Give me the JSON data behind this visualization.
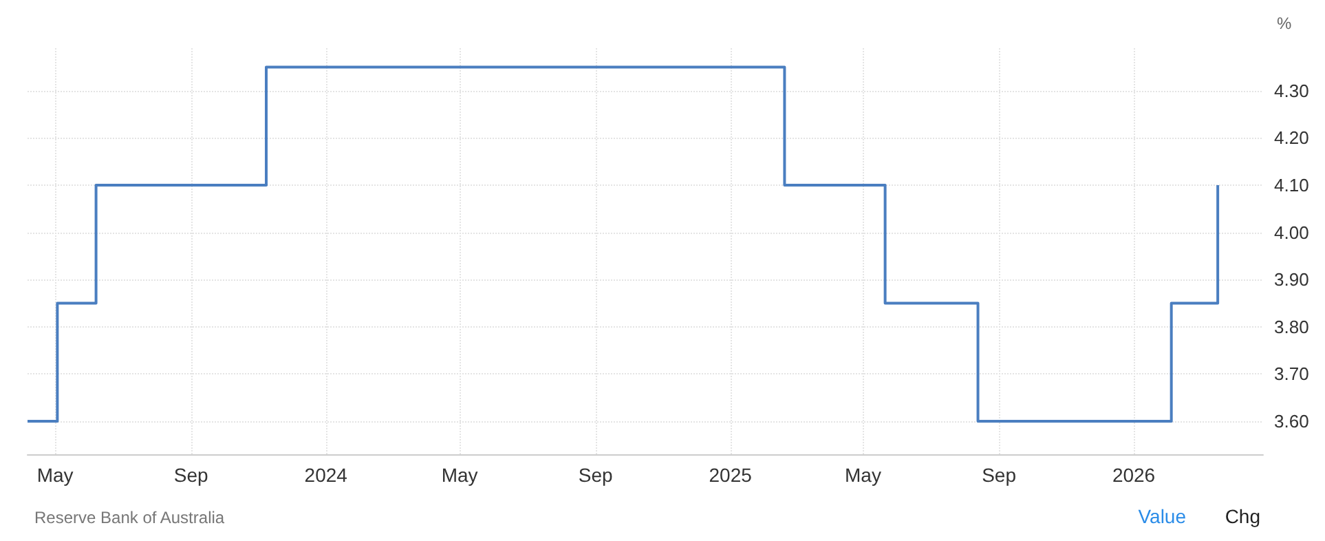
{
  "chart_data": {
    "type": "step",
    "ylabel": "%",
    "x": [
      "2023-04-06",
      "2023-05-03",
      "2023-06-07",
      "2023-11-08",
      "2025-02-19",
      "2025-05-21",
      "2025-08-13",
      "2026-02-04",
      "2026-03-18"
    ],
    "series": [
      {
        "color": "#4a7ec0",
        "values": [
          3.6,
          3.85,
          4.1,
          4.35,
          4.1,
          3.85,
          3.6,
          3.85,
          4.1
        ]
      }
    ],
    "xlim": [
      "2023-04-06",
      "2026-04-28"
    ],
    "xticks": [
      {
        "value": "2023-05",
        "label": "May"
      },
      {
        "value": "2023-09",
        "label": "Sep"
      },
      {
        "value": "2024",
        "label": "2024"
      },
      {
        "value": "2024-05",
        "label": "May"
      },
      {
        "value": "2024-09",
        "label": "Sep"
      },
      {
        "value": "2025",
        "label": "2025"
      },
      {
        "value": "2025-05",
        "label": "May"
      },
      {
        "value": "2025-09",
        "label": "Sep"
      },
      {
        "value": "2026",
        "label": "2026"
      }
    ],
    "ylim": [
      3.53,
      4.39
    ],
    "yticks": [
      {
        "value": 3.6,
        "label": "3.60"
      },
      {
        "value": 3.7,
        "label": "3.70"
      },
      {
        "value": 3.8,
        "label": "3.80"
      },
      {
        "value": 3.9,
        "label": "3.90"
      },
      {
        "value": 4.0,
        "label": "4.00"
      },
      {
        "value": 4.1,
        "label": "4.10"
      },
      {
        "value": 4.2,
        "label": "4.20"
      },
      {
        "value": 4.3,
        "label": "4.30"
      }
    ],
    "grid": true,
    "annotations": [
      "Reserve Bank of Australia",
      "Value",
      "Chg"
    ]
  }
}
